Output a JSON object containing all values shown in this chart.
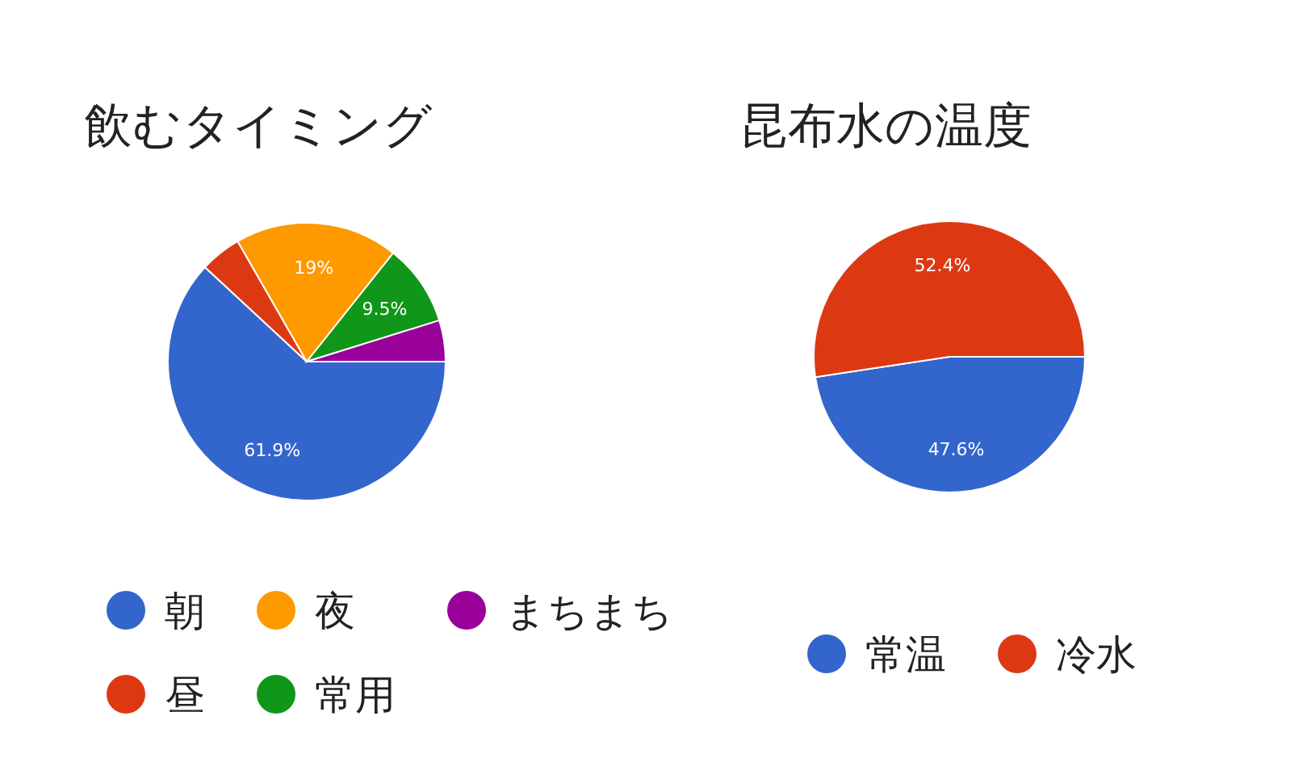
{
  "chart_data": [
    {
      "type": "pie",
      "title": "飲むタイミング",
      "categories": [
        "朝",
        "昼",
        "夜",
        "常用",
        "まちまち"
      ],
      "values": [
        61.9,
        4.8,
        19,
        9.5,
        4.8
      ],
      "colors": [
        "#3366cc",
        "#dc3912",
        "#ff9900",
        "#109618",
        "#990099"
      ],
      "value_labels": [
        "61.9%",
        null,
        "19%",
        "9.5%",
        null
      ],
      "legend": "bottom"
    },
    {
      "type": "pie",
      "title": "昆布水の温度",
      "categories": [
        "常温",
        "冷水"
      ],
      "values": [
        47.6,
        52.4
      ],
      "colors": [
        "#3366cc",
        "#dc3912"
      ],
      "value_labels": [
        "47.6%",
        "52.4%"
      ],
      "legend": "bottom"
    }
  ]
}
